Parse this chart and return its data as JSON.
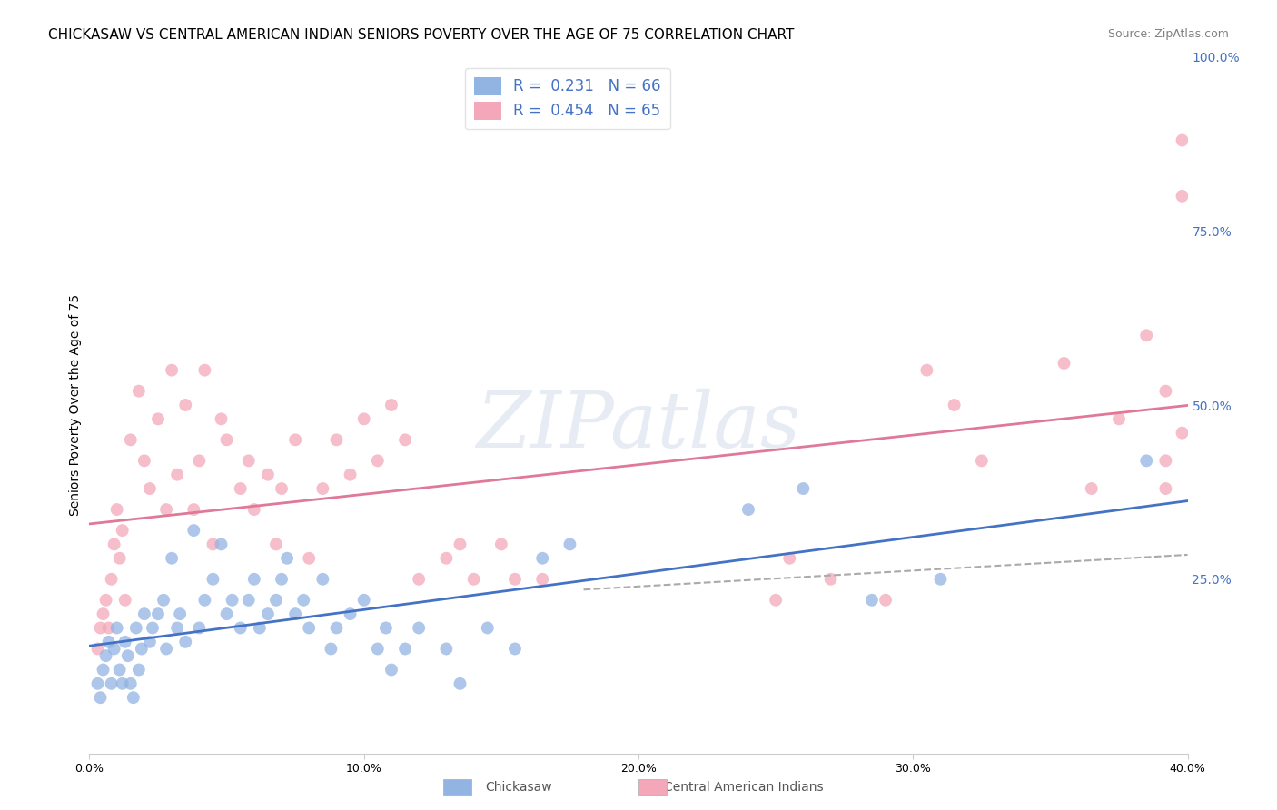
{
  "title": "CHICKASAW VS CENTRAL AMERICAN INDIAN SENIORS POVERTY OVER THE AGE OF 75 CORRELATION CHART",
  "source": "Source: ZipAtlas.com",
  "xlabel_ticks": [
    "0.0%",
    "10.0%",
    "20.0%",
    "30.0%",
    "40.0%"
  ],
  "xlabel_values": [
    0.0,
    0.1,
    0.2,
    0.3,
    0.4
  ],
  "ylabel": "Seniors Poverty Over the Age of 75",
  "right_ytick_labels": [
    "100.0%",
    "75.0%",
    "50.0%",
    "25.0%"
  ],
  "right_ytick_values": [
    1.0,
    0.75,
    0.5,
    0.25
  ],
  "xlim": [
    0.0,
    0.4
  ],
  "ylim": [
    0.0,
    1.0
  ],
  "chickasaw_color": "#92b4e3",
  "central_american_color": "#f4a7b9",
  "chickasaw_line_color": "#4472c4",
  "central_american_line_color": "#e07898",
  "chickasaw_R": 0.231,
  "chickasaw_N": 66,
  "central_american_R": 0.454,
  "central_american_N": 65,
  "legend_label_1": "Chickasaw",
  "legend_label_2": "Central American Indians",
  "watermark_text": "ZIPatlas",
  "grid_color": "#cccccc",
  "background_color": "#ffffff",
  "title_fontsize": 11,
  "axis_label_fontsize": 10,
  "tick_fontsize": 9,
  "legend_fontsize": 12,
  "source_fontsize": 9,
  "right_tick_color": "#4472c4",
  "chickasaw_scatter_x": [
    0.003,
    0.004,
    0.005,
    0.006,
    0.007,
    0.008,
    0.009,
    0.01,
    0.011,
    0.012,
    0.013,
    0.014,
    0.015,
    0.016,
    0.017,
    0.018,
    0.019,
    0.02,
    0.022,
    0.023,
    0.025,
    0.027,
    0.028,
    0.03,
    0.032,
    0.033,
    0.035,
    0.038,
    0.04,
    0.042,
    0.045,
    0.048,
    0.05,
    0.052,
    0.055,
    0.058,
    0.06,
    0.062,
    0.065,
    0.068,
    0.07,
    0.072,
    0.075,
    0.078,
    0.08,
    0.085,
    0.088,
    0.09,
    0.095,
    0.1,
    0.105,
    0.108,
    0.11,
    0.115,
    0.12,
    0.13,
    0.135,
    0.145,
    0.155,
    0.165,
    0.175,
    0.24,
    0.26,
    0.285,
    0.31,
    0.385
  ],
  "chickasaw_scatter_y": [
    0.1,
    0.08,
    0.12,
    0.14,
    0.16,
    0.1,
    0.15,
    0.18,
    0.12,
    0.1,
    0.16,
    0.14,
    0.1,
    0.08,
    0.18,
    0.12,
    0.15,
    0.2,
    0.16,
    0.18,
    0.2,
    0.22,
    0.15,
    0.28,
    0.18,
    0.2,
    0.16,
    0.32,
    0.18,
    0.22,
    0.25,
    0.3,
    0.2,
    0.22,
    0.18,
    0.22,
    0.25,
    0.18,
    0.2,
    0.22,
    0.25,
    0.28,
    0.2,
    0.22,
    0.18,
    0.25,
    0.15,
    0.18,
    0.2,
    0.22,
    0.15,
    0.18,
    0.12,
    0.15,
    0.18,
    0.15,
    0.1,
    0.18,
    0.15,
    0.28,
    0.3,
    0.35,
    0.38,
    0.22,
    0.25,
    0.42
  ],
  "central_american_scatter_x": [
    0.003,
    0.004,
    0.005,
    0.006,
    0.007,
    0.008,
    0.009,
    0.01,
    0.011,
    0.012,
    0.013,
    0.015,
    0.018,
    0.02,
    0.022,
    0.025,
    0.028,
    0.03,
    0.032,
    0.035,
    0.038,
    0.04,
    0.042,
    0.045,
    0.048,
    0.05,
    0.055,
    0.058,
    0.06,
    0.065,
    0.068,
    0.07,
    0.075,
    0.08,
    0.085,
    0.09,
    0.095,
    0.1,
    0.105,
    0.11,
    0.115,
    0.12,
    0.13,
    0.135,
    0.14,
    0.15,
    0.155,
    0.165,
    0.25,
    0.255,
    0.27,
    0.29,
    0.305,
    0.315,
    0.325,
    0.355,
    0.365,
    0.375,
    0.385,
    0.392,
    0.398,
    0.398,
    0.398,
    0.392,
    0.392
  ],
  "central_american_scatter_y": [
    0.15,
    0.18,
    0.2,
    0.22,
    0.18,
    0.25,
    0.3,
    0.35,
    0.28,
    0.32,
    0.22,
    0.45,
    0.52,
    0.42,
    0.38,
    0.48,
    0.35,
    0.55,
    0.4,
    0.5,
    0.35,
    0.42,
    0.55,
    0.3,
    0.48,
    0.45,
    0.38,
    0.42,
    0.35,
    0.4,
    0.3,
    0.38,
    0.45,
    0.28,
    0.38,
    0.45,
    0.4,
    0.48,
    0.42,
    0.5,
    0.45,
    0.25,
    0.28,
    0.3,
    0.25,
    0.3,
    0.25,
    0.25,
    0.22,
    0.28,
    0.25,
    0.22,
    0.55,
    0.5,
    0.42,
    0.56,
    0.38,
    0.48,
    0.6,
    0.52,
    0.46,
    0.8,
    0.88,
    0.38,
    0.42
  ],
  "dashed_line_x": [
    0.18,
    0.4
  ],
  "dashed_line_y": [
    0.235,
    0.285
  ]
}
